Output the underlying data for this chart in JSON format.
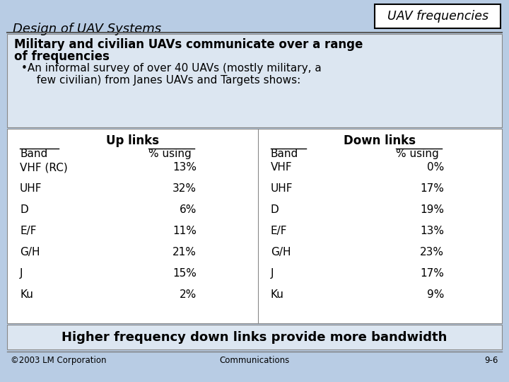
{
  "background_color": "#b8cce4",
  "title_left": "Design of UAV Systems",
  "title_right": "UAV frequencies",
  "header_text_line1": "Military and civilian UAVs communicate over a range",
  "header_text_line2": "of frequencies",
  "bullet_text_line1": "•An informal survey of over 40 UAVs (mostly military, a",
  "bullet_text_line2": "  few civilian) from Janes UAVs and Targets shows:",
  "up_links_title": "Up links",
  "down_links_title": "Down links",
  "up_band_header": "Band",
  "up_pct_header": "% using",
  "down_band_header": "Band",
  "down_pct_header": "% using",
  "up_bands": [
    "VHF (RC)",
    "UHF",
    "D",
    "E/F",
    "G/H",
    "J",
    "Ku"
  ],
  "up_pcts": [
    "13%",
    "32%",
    "6%",
    "11%",
    "21%",
    "15%",
    "2%"
  ],
  "down_bands": [
    "VHF",
    "UHF",
    "D",
    "E/F",
    "G/H",
    "J",
    "Ku"
  ],
  "down_pcts": [
    "0%",
    "17%",
    "19%",
    "13%",
    "23%",
    "17%",
    "9%"
  ],
  "footer_text": "Higher frequency down links provide more bandwidth",
  "footer_left": "©2003 LM Corporation",
  "footer_center": "Communications",
  "footer_right": "9-6",
  "box_bg": "#dce6f1",
  "table_bg": "#ffffff",
  "header_box_bg": "#dce6f1",
  "footer_box_bg": "#dce6f1"
}
